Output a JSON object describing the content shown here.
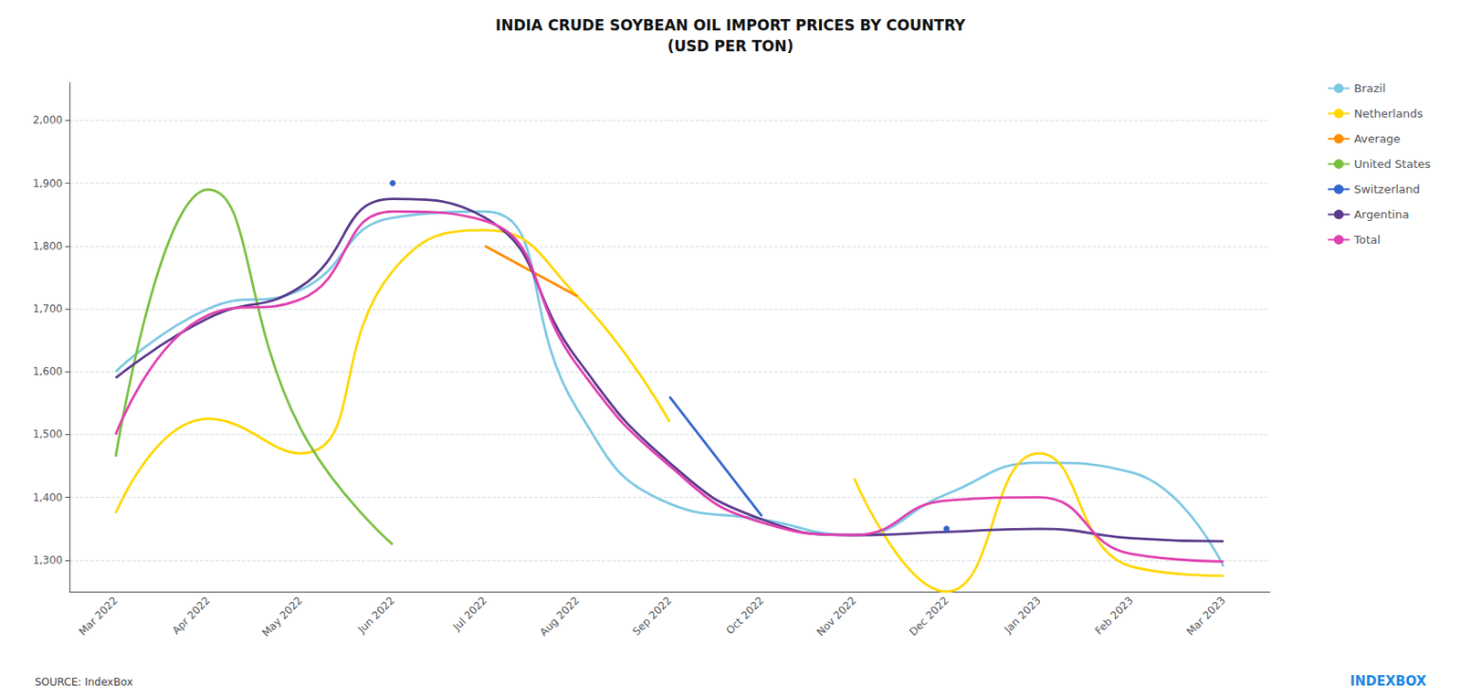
{
  "chart_data": {
    "type": "line",
    "title": "INDIA CRUDE SOYBEAN OIL IMPORT PRICES BY COUNTRY\n(USD PER TON)",
    "categories": [
      "Mar 2022",
      "Apr 2022",
      "May 2022",
      "Jun 2022",
      "Jul 2022",
      "Aug 2022",
      "Sep 2022",
      "Oct 2022",
      "Nov 2022",
      "Dec 2022",
      "Jan 2023",
      "Feb 2023",
      "Mar 2023"
    ],
    "series": [
      {
        "name": "Brazil",
        "color": "#7EC8E3",
        "values": [
          1600,
          1700,
          1730,
          1845,
          1855,
          1540,
          1390,
          1365,
          1340,
          1405,
          1455,
          1440,
          1290
        ]
      },
      {
        "name": "Netherlands",
        "color": "#FFD700",
        "values": [
          1375,
          1525,
          1470,
          1760,
          1825,
          1720,
          1520,
          null,
          1430,
          1250,
          1470,
          1290,
          1275
        ]
      },
      {
        "name": "Average",
        "color": "#FF8C00",
        "values": [
          null,
          null,
          null,
          null,
          1800,
          1720,
          null,
          null,
          null,
          null,
          null,
          null,
          null
        ]
      },
      {
        "name": "United States",
        "color": "#7BC043",
        "values": [
          1465,
          1890,
          1510,
          1325,
          null,
          null,
          null,
          null,
          null,
          null,
          null,
          null,
          null
        ]
      },
      {
        "name": "Switzerland",
        "color": "#3366CC",
        "values": [
          null,
          null,
          null,
          1900,
          null,
          null,
          1560,
          1370,
          null,
          1350,
          null,
          null,
          null
        ]
      },
      {
        "name": "Argentina",
        "color": "#5B3A8C",
        "values": [
          1590,
          1685,
          1735,
          1875,
          1845,
          1620,
          1455,
          1365,
          1340,
          1345,
          1350,
          1335,
          1330
        ]
      },
      {
        "name": "Total",
        "color": "#E040B0",
        "values": [
          1500,
          1690,
          1715,
          1855,
          1840,
          1610,
          1450,
          1360,
          1340,
          1395,
          1400,
          1310,
          1298
        ]
      }
    ],
    "ylim": [
      1250,
      2060
    ],
    "yticks": [
      {
        "value": 1300,
        "label": "1,300"
      },
      {
        "value": 1400,
        "label": "1,400"
      },
      {
        "value": 1500,
        "label": "1,500"
      },
      {
        "value": 1600,
        "label": "1,600"
      },
      {
        "value": 1700,
        "label": "1,700"
      },
      {
        "value": 1800,
        "label": "1,800"
      },
      {
        "value": 1900,
        "label": "1,900"
      },
      {
        "value": 2000,
        "label": "2,000"
      }
    ],
    "grid": true,
    "legend": "right",
    "annotations": [
      {
        "text": "SOURCE: IndexBox",
        "color": "#444444",
        "position": "bottom left"
      },
      {
        "text": "INDEXBOX",
        "color": "#1E88E5",
        "position": "bottom right"
      }
    ]
  }
}
